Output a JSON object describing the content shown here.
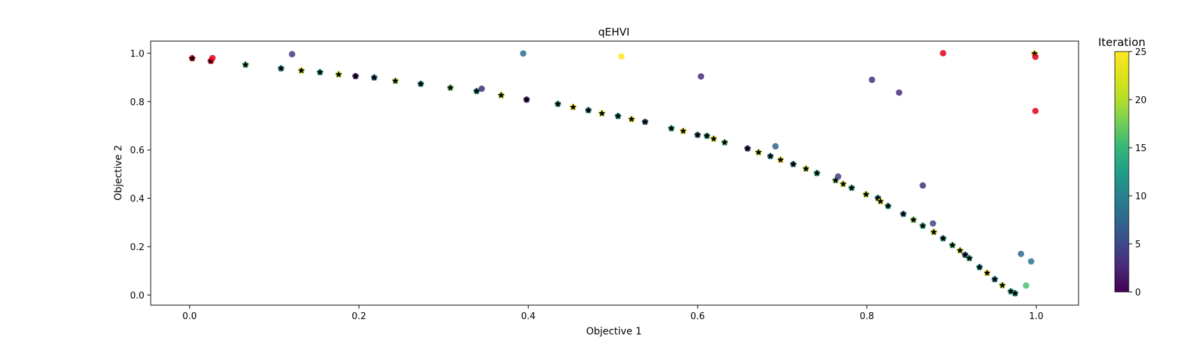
{
  "chart_data": {
    "type": "scatter",
    "title": "qEHVI",
    "xlabel": "Objective 1",
    "ylabel": "Objective 2",
    "xlim": [
      -0.046,
      1.05
    ],
    "ylim": [
      -0.042,
      1.05
    ],
    "xticks": [
      "0.0",
      "0.2",
      "0.4",
      "0.6",
      "0.8",
      "1.0"
    ],
    "yticks": [
      "0.0",
      "0.2",
      "0.4",
      "0.6",
      "0.8",
      "1.0"
    ],
    "xtick_values": [
      0.0,
      0.2,
      0.4,
      0.6,
      0.8,
      1.0
    ],
    "ytick_values": [
      0.0,
      0.2,
      0.4,
      0.6,
      0.8,
      1.0
    ],
    "grid": false,
    "colorbar": {
      "label": "Iteration",
      "min": 0,
      "max": 25,
      "ticks": [
        "0",
        "5",
        "10",
        "15",
        "20",
        "25"
      ],
      "tick_values": [
        0,
        5,
        10,
        15,
        20,
        25
      ],
      "colormap": "viridis"
    },
    "initial_points_color": "#e3001b",
    "pareto_marker_color": "#000000",
    "points": [
      {
        "x": 0.003,
        "y": 0.979,
        "iter": 0,
        "pareto": true
      },
      {
        "x": 0.025,
        "y": 0.968,
        "iter": 0,
        "pareto": true
      },
      {
        "x": 0.066,
        "y": 0.952,
        "iter": 16,
        "pareto": true
      },
      {
        "x": 0.108,
        "y": 0.937,
        "iter": 10,
        "pareto": true
      },
      {
        "x": 0.121,
        "y": 0.996,
        "iter": 4,
        "pareto": false
      },
      {
        "x": 0.132,
        "y": 0.928,
        "iter": 23,
        "pareto": true
      },
      {
        "x": 0.154,
        "y": 0.921,
        "iter": 14,
        "pareto": true
      },
      {
        "x": 0.176,
        "y": 0.912,
        "iter": 22,
        "pareto": true
      },
      {
        "x": 0.196,
        "y": 0.905,
        "iter": 2,
        "pareto": true
      },
      {
        "x": 0.218,
        "y": 0.899,
        "iter": 9,
        "pareto": true
      },
      {
        "x": 0.243,
        "y": 0.885,
        "iter": 19,
        "pareto": true
      },
      {
        "x": 0.273,
        "y": 0.873,
        "iter": 11,
        "pareto": true
      },
      {
        "x": 0.308,
        "y": 0.857,
        "iter": 17,
        "pareto": true
      },
      {
        "x": 0.339,
        "y": 0.843,
        "iter": 12,
        "pareto": true
      },
      {
        "x": 0.345,
        "y": 0.853,
        "iter": 3,
        "pareto": false
      },
      {
        "x": 0.368,
        "y": 0.826,
        "iter": 20,
        "pareto": true
      },
      {
        "x": 0.394,
        "y": 0.999,
        "iter": 8,
        "pareto": false
      },
      {
        "x": 0.398,
        "y": 0.808,
        "iter": 2,
        "pareto": true
      },
      {
        "x": 0.435,
        "y": 0.79,
        "iter": 13,
        "pareto": true
      },
      {
        "x": 0.453,
        "y": 0.777,
        "iter": 25,
        "pareto": true
      },
      {
        "x": 0.471,
        "y": 0.764,
        "iter": 10,
        "pareto": true
      },
      {
        "x": 0.487,
        "y": 0.751,
        "iter": 21,
        "pareto": true
      },
      {
        "x": 0.506,
        "y": 0.74,
        "iter": 12,
        "pareto": true
      },
      {
        "x": 0.51,
        "y": 0.987,
        "iter": 25,
        "pareto": false
      },
      {
        "x": 0.522,
        "y": 0.727,
        "iter": 24,
        "pareto": true
      },
      {
        "x": 0.538,
        "y": 0.716,
        "iter": 7,
        "pareto": true
      },
      {
        "x": 0.569,
        "y": 0.689,
        "iter": 14,
        "pareto": true
      },
      {
        "x": 0.583,
        "y": 0.678,
        "iter": 23,
        "pareto": true
      },
      {
        "x": 0.6,
        "y": 0.662,
        "iter": 8,
        "pareto": true
      },
      {
        "x": 0.604,
        "y": 0.904,
        "iter": 3,
        "pareto": false
      },
      {
        "x": 0.611,
        "y": 0.658,
        "iter": 12,
        "pareto": true
      },
      {
        "x": 0.619,
        "y": 0.646,
        "iter": 22,
        "pareto": true
      },
      {
        "x": 0.632,
        "y": 0.631,
        "iter": 16,
        "pareto": true
      },
      {
        "x": 0.659,
        "y": 0.606,
        "iter": 4,
        "pareto": true
      },
      {
        "x": 0.672,
        "y": 0.59,
        "iter": 21,
        "pareto": true
      },
      {
        "x": 0.686,
        "y": 0.574,
        "iter": 11,
        "pareto": true
      },
      {
        "x": 0.692,
        "y": 0.615,
        "iter": 7,
        "pareto": false
      },
      {
        "x": 0.698,
        "y": 0.559,
        "iter": 24,
        "pareto": true
      },
      {
        "x": 0.713,
        "y": 0.541,
        "iter": 9,
        "pareto": true
      },
      {
        "x": 0.728,
        "y": 0.522,
        "iter": 20,
        "pareto": true
      },
      {
        "x": 0.741,
        "y": 0.504,
        "iter": 13,
        "pareto": true
      },
      {
        "x": 0.763,
        "y": 0.474,
        "iter": 18,
        "pareto": true
      },
      {
        "x": 0.766,
        "y": 0.49,
        "iter": 4,
        "pareto": false
      },
      {
        "x": 0.772,
        "y": 0.459,
        "iter": 22,
        "pareto": true
      },
      {
        "x": 0.782,
        "y": 0.443,
        "iter": 14,
        "pareto": true
      },
      {
        "x": 0.799,
        "y": 0.416,
        "iter": 20,
        "pareto": true
      },
      {
        "x": 0.806,
        "y": 0.89,
        "iter": 3,
        "pareto": false
      },
      {
        "x": 0.813,
        "y": 0.401,
        "iter": 11,
        "pareto": true
      },
      {
        "x": 0.816,
        "y": 0.387,
        "iter": 24,
        "pareto": true
      },
      {
        "x": 0.825,
        "y": 0.368,
        "iter": 13,
        "pareto": true
      },
      {
        "x": 0.838,
        "y": 0.837,
        "iter": 3,
        "pareto": false
      },
      {
        "x": 0.843,
        "y": 0.335,
        "iter": 10,
        "pareto": true
      },
      {
        "x": 0.855,
        "y": 0.311,
        "iter": 18,
        "pareto": true
      },
      {
        "x": 0.866,
        "y": 0.453,
        "iter": 3,
        "pareto": false
      },
      {
        "x": 0.866,
        "y": 0.286,
        "iter": 15,
        "pareto": true
      },
      {
        "x": 0.878,
        "y": 0.296,
        "iter": 5,
        "pareto": false
      },
      {
        "x": 0.879,
        "y": 0.26,
        "iter": 21,
        "pareto": true
      },
      {
        "x": 0.89,
        "y": 0.234,
        "iter": 11,
        "pareto": true
      },
      {
        "x": 0.89,
        "y": 1.0,
        "iter": 0,
        "pareto": false
      },
      {
        "x": 0.901,
        "y": 0.206,
        "iter": 16,
        "pareto": true
      },
      {
        "x": 0.91,
        "y": 0.184,
        "iter": 23,
        "pareto": true
      },
      {
        "x": 0.916,
        "y": 0.166,
        "iter": 6,
        "pareto": true
      },
      {
        "x": 0.921,
        "y": 0.152,
        "iter": 14,
        "pareto": true
      },
      {
        "x": 0.933,
        "y": 0.115,
        "iter": 12,
        "pareto": true
      },
      {
        "x": 0.942,
        "y": 0.091,
        "iter": 25,
        "pareto": true
      },
      {
        "x": 0.951,
        "y": 0.065,
        "iter": 10,
        "pareto": true
      },
      {
        "x": 0.96,
        "y": 0.04,
        "iter": 21,
        "pareto": true
      },
      {
        "x": 0.97,
        "y": 0.015,
        "iter": 14,
        "pareto": true
      },
      {
        "x": 0.975,
        "y": 0.007,
        "iter": 12,
        "pareto": true
      },
      {
        "x": 0.982,
        "y": 0.17,
        "iter": 8,
        "pareto": false
      },
      {
        "x": 0.988,
        "y": 0.039,
        "iter": 16,
        "pareto": false
      },
      {
        "x": 0.994,
        "y": 0.139,
        "iter": 9,
        "pareto": false
      },
      {
        "x": 0.998,
        "y": 0.998,
        "iter": 22,
        "pareto": true
      },
      {
        "x": 0.999,
        "y": 0.985,
        "iter": 0,
        "pareto": false
      },
      {
        "x": 0.999,
        "y": 0.761,
        "iter": 0,
        "pareto": false
      },
      {
        "x": 0.027,
        "y": 0.98,
        "iter": 0,
        "pareto": false
      }
    ]
  }
}
